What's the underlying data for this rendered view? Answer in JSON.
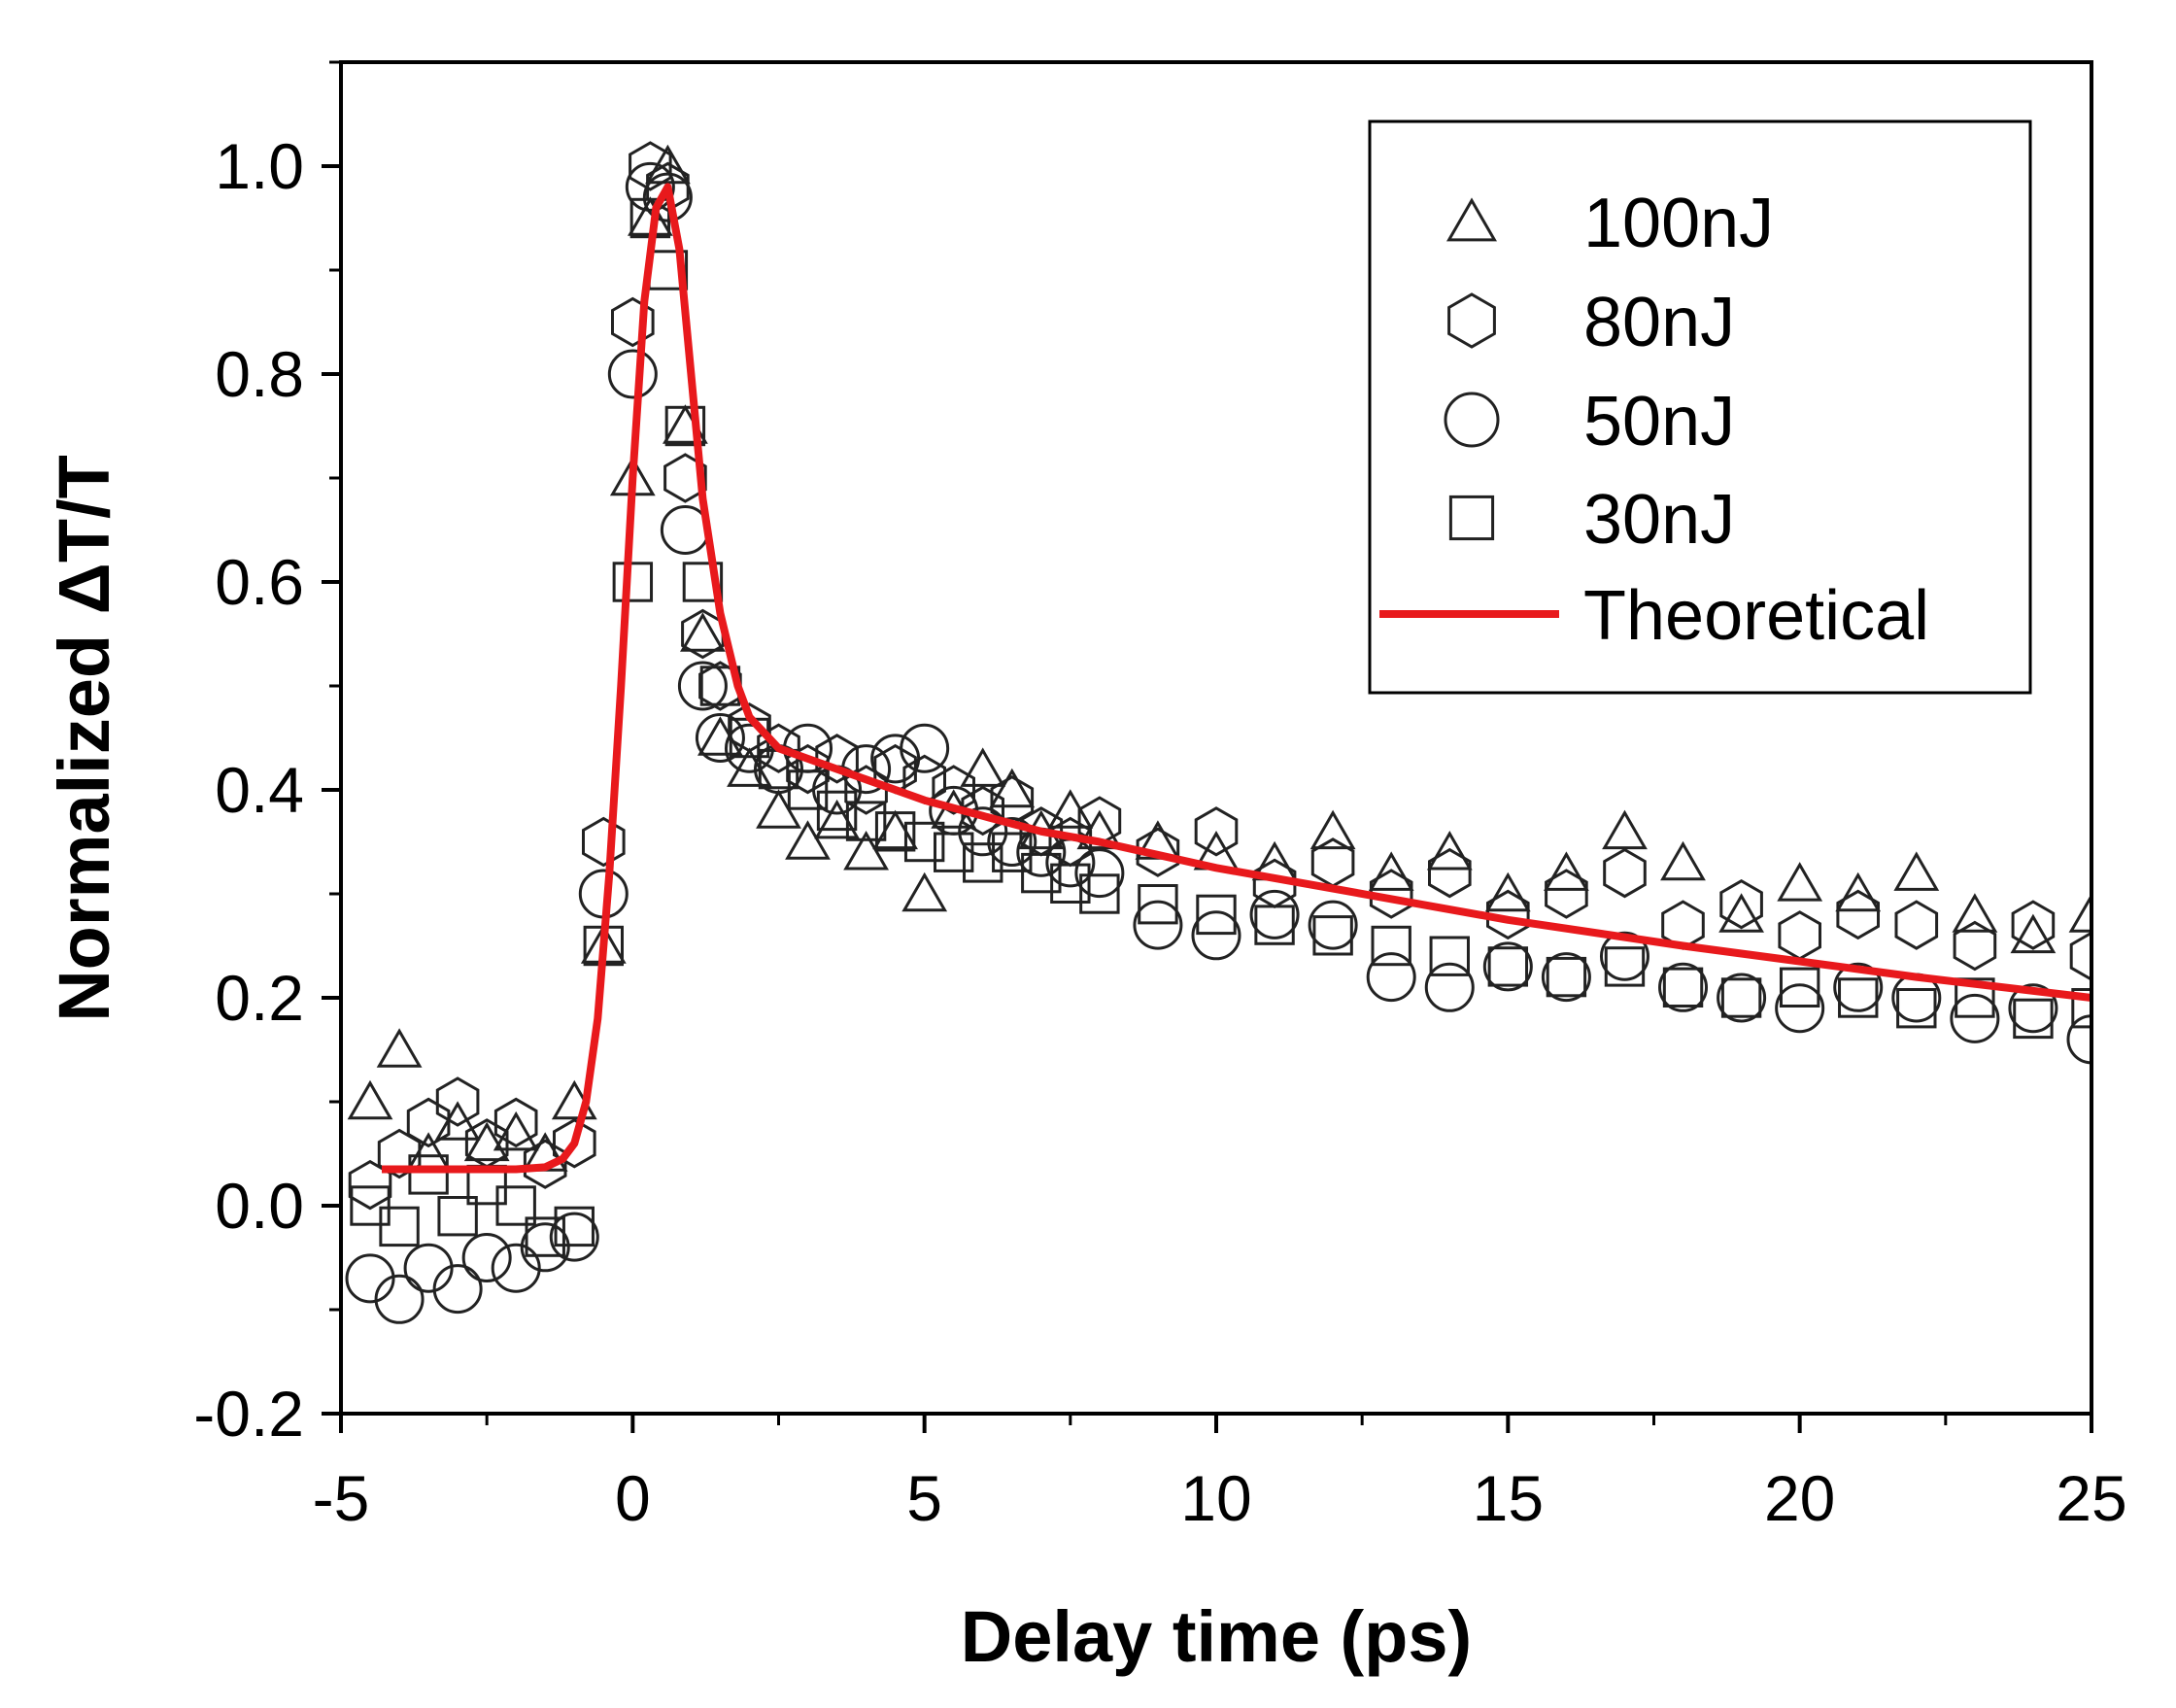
{
  "chart_data": {
    "type": "scatter",
    "xlabel": "Delay time (ps)",
    "ylabel": "Normalized ΔT/T",
    "xlim": [
      -5,
      25
    ],
    "ylim": [
      -0.2,
      1.1
    ],
    "xticks": [
      -5,
      0,
      5,
      10,
      15,
      20,
      25
    ],
    "xtick_labels": [
      "-5",
      "0",
      "5",
      "10",
      "15",
      "20",
      "25"
    ],
    "yticks": [
      -0.2,
      0.0,
      0.2,
      0.4,
      0.6,
      0.8,
      1.0
    ],
    "ytick_labels": [
      "-0.2",
      "0.0",
      "0.2",
      "0.4",
      "0.6",
      "0.8",
      "1.0"
    ],
    "grid": false,
    "legend_position": "top-right",
    "series": [
      {
        "name": "100nJ",
        "marker": "triangle",
        "x": [
          -4.5,
          -4.0,
          -3.5,
          -3.0,
          -2.5,
          -2.0,
          -1.5,
          -1.0,
          -0.5,
          0.0,
          0.3,
          0.6,
          0.9,
          1.2,
          1.5,
          2.0,
          2.5,
          3.0,
          3.5,
          4.0,
          4.5,
          5.0,
          5.5,
          6.0,
          6.5,
          7.0,
          7.5,
          8.0,
          9.0,
          10.0,
          11.0,
          12.0,
          13.0,
          14.0,
          15.0,
          16.0,
          17.0,
          18.0,
          19.0,
          20.0,
          21.0,
          22.0,
          23.0,
          24.0,
          25.0
        ],
        "y": [
          0.1,
          0.15,
          0.05,
          0.08,
          0.06,
          0.07,
          0.05,
          0.1,
          0.25,
          0.7,
          0.95,
          1.0,
          0.75,
          0.55,
          0.45,
          0.42,
          0.38,
          0.35,
          0.37,
          0.34,
          0.36,
          0.3,
          0.38,
          0.42,
          0.4,
          0.36,
          0.38,
          0.36,
          0.35,
          0.34,
          0.33,
          0.36,
          0.32,
          0.34,
          0.3,
          0.32,
          0.36,
          0.33,
          0.28,
          0.31,
          0.3,
          0.32,
          0.28,
          0.26,
          0.28
        ]
      },
      {
        "name": "80nJ",
        "marker": "hexagon",
        "x": [
          -4.5,
          -4.0,
          -3.5,
          -3.0,
          -2.5,
          -2.0,
          -1.5,
          -1.0,
          -0.5,
          0.0,
          0.3,
          0.6,
          0.9,
          1.2,
          1.5,
          2.0,
          2.5,
          3.0,
          3.5,
          4.0,
          4.5,
          5.0,
          5.5,
          6.0,
          6.5,
          7.0,
          7.5,
          8.0,
          9.0,
          10.0,
          11.0,
          12.0,
          13.0,
          14.0,
          15.0,
          16.0,
          17.0,
          18.0,
          19.0,
          20.0,
          21.0,
          22.0,
          23.0,
          24.0,
          25.0
        ],
        "y": [
          0.02,
          0.05,
          0.08,
          0.1,
          0.06,
          0.08,
          0.04,
          0.06,
          0.35,
          0.85,
          1.0,
          0.98,
          0.7,
          0.55,
          0.5,
          0.46,
          0.44,
          0.42,
          0.43,
          0.4,
          0.42,
          0.41,
          0.4,
          0.38,
          0.39,
          0.36,
          0.35,
          0.37,
          0.34,
          0.36,
          0.31,
          0.33,
          0.3,
          0.32,
          0.28,
          0.3,
          0.32,
          0.27,
          0.29,
          0.26,
          0.28,
          0.27,
          0.25,
          0.27,
          0.24
        ]
      },
      {
        "name": "50nJ",
        "marker": "circle",
        "x": [
          -4.5,
          -4.0,
          -3.5,
          -3.0,
          -2.5,
          -2.0,
          -1.5,
          -1.0,
          -0.5,
          0.0,
          0.3,
          0.6,
          0.9,
          1.2,
          1.5,
          2.0,
          2.5,
          3.0,
          3.5,
          4.0,
          4.5,
          5.0,
          5.5,
          6.0,
          6.5,
          7.0,
          7.5,
          8.0,
          9.0,
          10.0,
          11.0,
          12.0,
          13.0,
          14.0,
          15.0,
          16.0,
          17.0,
          18.0,
          19.0,
          20.0,
          21.0,
          22.0,
          23.0,
          24.0,
          25.0
        ],
        "y": [
          -0.07,
          -0.09,
          -0.06,
          -0.08,
          -0.05,
          -0.06,
          -0.04,
          -0.03,
          0.3,
          0.8,
          0.98,
          0.97,
          0.65,
          0.5,
          0.45,
          0.44,
          0.42,
          0.44,
          0.4,
          0.42,
          0.43,
          0.44,
          0.38,
          0.36,
          0.35,
          0.34,
          0.33,
          0.32,
          0.27,
          0.26,
          0.28,
          0.27,
          0.22,
          0.21,
          0.23,
          0.22,
          0.24,
          0.21,
          0.2,
          0.19,
          0.21,
          0.2,
          0.18,
          0.19,
          0.16
        ]
      },
      {
        "name": "30nJ",
        "marker": "square",
        "x": [
          -4.5,
          -4.0,
          -3.5,
          -3.0,
          -2.5,
          -2.0,
          -1.5,
          -1.0,
          -0.5,
          0.0,
          0.3,
          0.6,
          0.9,
          1.2,
          1.5,
          2.0,
          2.5,
          3.0,
          3.5,
          4.0,
          4.5,
          5.0,
          5.5,
          6.0,
          6.5,
          7.0,
          7.5,
          8.0,
          9.0,
          10.0,
          11.0,
          12.0,
          13.0,
          14.0,
          15.0,
          16.0,
          17.0,
          18.0,
          19.0,
          20.0,
          21.0,
          22.0,
          23.0,
          24.0,
          25.0
        ],
        "y": [
          0.0,
          -0.02,
          0.03,
          -0.01,
          0.02,
          0.0,
          -0.03,
          -0.02,
          0.25,
          0.6,
          0.95,
          0.9,
          0.75,
          0.6,
          0.5,
          0.45,
          0.42,
          0.4,
          0.38,
          0.37,
          0.36,
          0.35,
          0.34,
          0.33,
          0.34,
          0.32,
          0.31,
          0.3,
          0.29,
          0.28,
          0.27,
          0.26,
          0.25,
          0.24,
          0.23,
          0.22,
          0.23,
          0.21,
          0.2,
          0.21,
          0.2,
          0.19,
          0.2,
          0.18,
          0.19
        ]
      },
      {
        "name": "Theoretical",
        "type": "line",
        "color": "#e8191c",
        "x": [
          -4.3,
          -3.0,
          -2.0,
          -1.5,
          -1.2,
          -1.0,
          -0.8,
          -0.6,
          -0.4,
          -0.2,
          0.0,
          0.2,
          0.4,
          0.6,
          0.8,
          1.0,
          1.2,
          1.5,
          1.8,
          2.0,
          2.5,
          3.0,
          3.5,
          4.0,
          5.0,
          6.0,
          7.0,
          8.0,
          10.0,
          12.0,
          15.0,
          18.0,
          20.0,
          22.0,
          25.0
        ],
        "y": [
          0.035,
          0.035,
          0.035,
          0.037,
          0.045,
          0.06,
          0.1,
          0.18,
          0.32,
          0.5,
          0.7,
          0.87,
          0.96,
          0.98,
          0.92,
          0.8,
          0.68,
          0.57,
          0.5,
          0.47,
          0.44,
          0.43,
          0.42,
          0.41,
          0.39,
          0.375,
          0.36,
          0.35,
          0.325,
          0.305,
          0.275,
          0.25,
          0.235,
          0.22,
          0.2
        ]
      }
    ]
  }
}
